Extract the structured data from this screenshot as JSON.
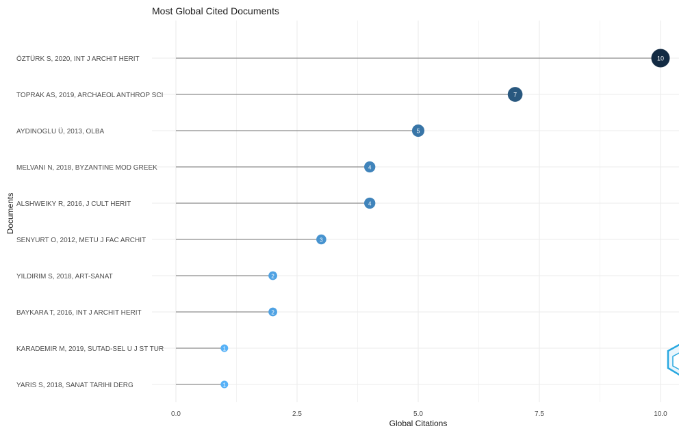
{
  "chart_data": {
    "type": "lollipop",
    "title": "Most Global Cited Documents",
    "xlabel": "Global Citations",
    "ylabel": "Documents",
    "xlim": [
      0,
      10
    ],
    "xticks": [
      0.0,
      2.5,
      5.0,
      7.5,
      10.0
    ],
    "xtick_labels": [
      "0.0",
      "2.5",
      "5.0",
      "7.5",
      "10.0"
    ],
    "grid": true,
    "categories": [
      "ÖZTÜRK S, 2020, INT J ARCHIT HERIT",
      "TOPRAK AS, 2019, ARCHAEOL ANTHROP SCI",
      "AYDINOGLU Ü, 2013, OLBA",
      "MELVANI N, 2018, BYZANTINE MOD GREEK",
      "ALSHWEIKY R, 2016, J CULT HERIT",
      "SENYURT O, 2012, METU J FAC ARCHIT",
      "YILDIRIM S, 2018, ART-SANAT",
      "BAYKARA T, 2016, INT J ARCHIT HERIT",
      "KARADEMIR M, 2019, SUTAD-SEL U J ST TUR",
      "YARIS S, 2018, SANAT TARIHI DERG"
    ],
    "values": [
      10,
      7,
      5,
      4,
      4,
      3,
      2,
      2,
      1,
      1
    ],
    "point_labels": [
      "10",
      "7",
      "5",
      "4",
      "4",
      "3",
      "2",
      "2",
      "1",
      "1"
    ],
    "colors": {
      "low": "#56B1F7",
      "high": "#132B43",
      "stem": "#8c8c8c",
      "grid": "#ebebeb",
      "text": "#1a1a1a"
    }
  }
}
